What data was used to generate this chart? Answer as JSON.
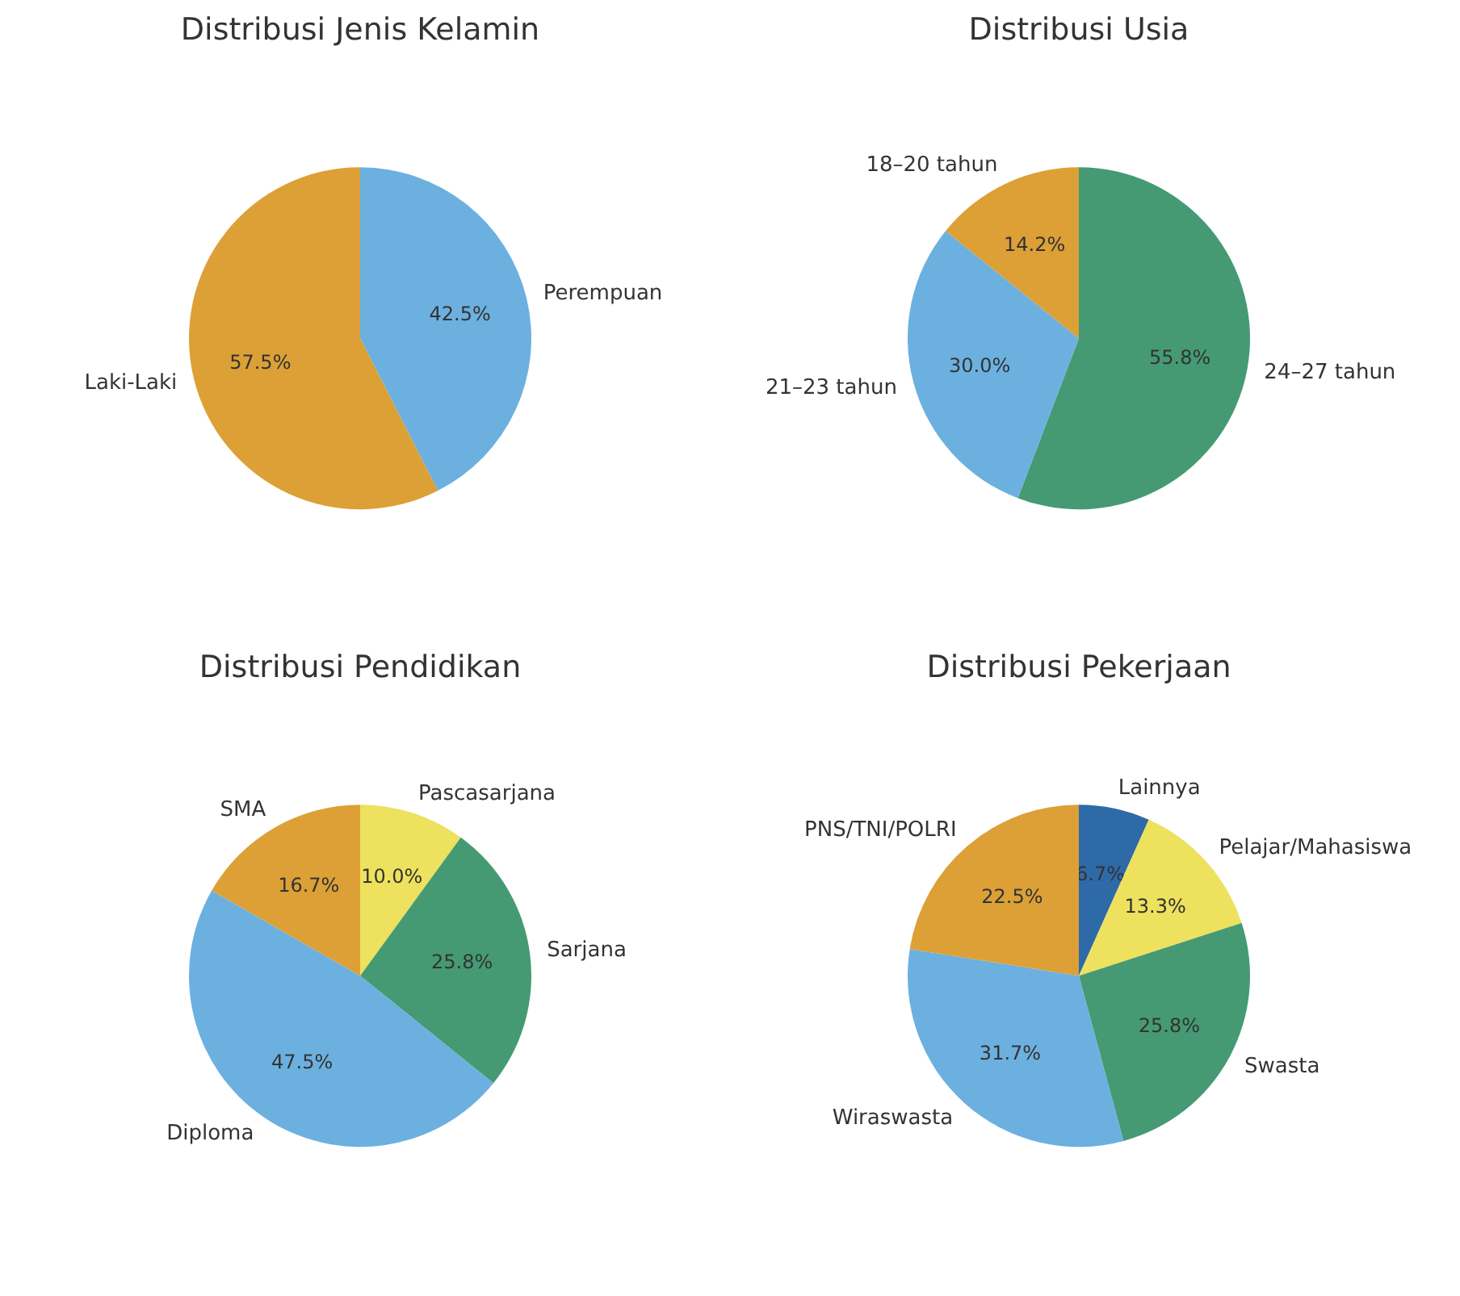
{
  "chart_data": [
    {
      "type": "pie",
      "title": "Distribusi Jenis Kelamin",
      "categories": [
        "Perempuan",
        "Laki-Laki"
      ],
      "values": [
        42.5,
        57.5
      ],
      "colors": [
        "#6cb0e0",
        "#dca036"
      ],
      "value_labels": [
        "42.5%",
        "57.5%"
      ]
    },
    {
      "type": "pie",
      "title": "Distribusi Usia",
      "categories": [
        "24–27 tahun",
        "21–23 tahun",
        "18–20 tahun"
      ],
      "values": [
        55.8,
        30.0,
        14.2
      ],
      "colors": [
        "#459a74",
        "#6cb0e0",
        "#dca036"
      ],
      "value_labels": [
        "55.8%",
        "30.0%",
        "14.2%"
      ]
    },
    {
      "type": "pie",
      "title": "Distribusi Pendidikan",
      "categories": [
        "Pascasarjana",
        "Sarjana",
        "Diploma",
        "SMA"
      ],
      "values": [
        10.0,
        25.8,
        47.5,
        16.7
      ],
      "colors": [
        "#ede15e",
        "#459a74",
        "#6cb0e0",
        "#dca036"
      ],
      "value_labels": [
        "10.0%",
        "25.8%",
        "47.5%",
        "16.7%"
      ]
    },
    {
      "type": "pie",
      "title": "Distribusi Pekerjaan",
      "categories": [
        "Lainnya",
        "Pelajar/Mahasiswa",
        "Swasta",
        "Wiraswasta",
        "PNS/TNI/POLRI"
      ],
      "values": [
        6.7,
        13.3,
        25.8,
        31.7,
        22.5
      ],
      "colors": [
        "#2e6aa8",
        "#ede15e",
        "#459a74",
        "#6cb0e0",
        "#dca036"
      ],
      "value_labels": [
        "6.7%",
        "13.3%",
        "25.8%",
        "31.7%",
        "22.5%"
      ]
    }
  ]
}
